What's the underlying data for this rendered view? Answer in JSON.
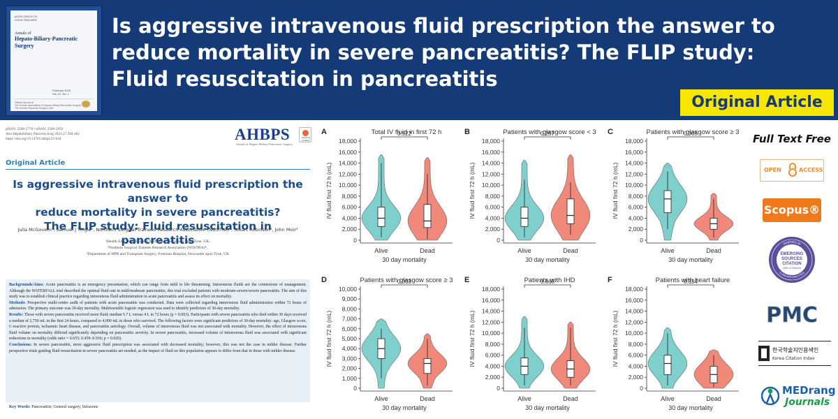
{
  "banner": {
    "headline_lines": [
      "Is aggressive intravenous fluid prescription the answer to",
      "reduce mortality in severe pancreatitis? The FLIP study:",
      "Fluid resuscitation in pancreatitis"
    ],
    "badge": "Original Article",
    "colors": {
      "background": "#143a78",
      "badge": "#f7e600"
    },
    "cover": {
      "issn_lines": [
        "pISSN 2508-5778",
        "eISSN 2508-5859"
      ],
      "title_small": "Annals of",
      "title_large": "Hepato-Biliary-Pancreatic Surgery",
      "volume_lines": [
        "February 2023",
        "Vol. 27, No. 1"
      ],
      "footer_lines": [
        "Official Journal of",
        "The Korean Association of Hepato-Biliary-Pancreatic Surgery",
        "The Korean Pancreas Surgery Club"
      ]
    }
  },
  "article": {
    "meta_lines": [
      "pISSN: 2508-5778 • eISSN: 2508-5859",
      "Ann Hepatobiliary Pancreat Surg 2023;27:394-402",
      "https://doi.org/10.14701/ahbps.23-044"
    ],
    "journal_logo": "AHBPS",
    "journal_logo_sub": "Annals of Hepato-Biliary-Pancreatic Surgery",
    "check_updates": "Check for updates",
    "section_label": "Original Article",
    "title_lines": [
      "Is aggressive intravenous fluid prescription the answer to",
      "reduce mortality in severe pancreatitis?",
      "The FLIP study: Fluid resuscitation in pancreatitis"
    ],
    "authors": "Julia McGovern¹, Samuel J Tingle¹, Northern Surgical Trainees Research Association (NOSTRA)², Stuart Robinson³, John Moir³",
    "affiliations": [
      "¹Health Education England North East, Newcastle upon Tyne, UK,",
      "²Northern Surgical Trainees Research Association (NOSTRA)*,",
      "³Department of HPB and Transplant Surgery, Freeman Hospital, Newcastle upon Tyne, UK"
    ],
    "abstract": {
      "background_label": "Backgrounds/Aims:",
      "background": "Acute pancreatitis is an emergency presentation, which can range from mild to life threatening. Intravenous fluids are the cornerstone of management. Although the WATERFALL trial described the optimal fluid rate in mild/moderate pancreatitis, this trial excluded patients with moderate-severe/severe pancreatitis. The aim of this study was to establish clinical practice regarding intravenous fluid administration in acute pancreatitis and assess its effect on mortality.",
      "methods_label": "Methods:",
      "methods": "Prospective multi-centre audit of patients with acute pancreatitis was conducted. Data were collected regarding intravenous fluid administration within 72 hours of admission. The primary outcome was 30-day mortality. Multivariable logistic regression was used to identify predictors of 30-day mortality.",
      "results_label": "Results:",
      "results": "Those with severe pancreatitis received more fluid; median 5.7 L versus 4 L in 72 hours (p = 0.003). Participants with severe pancreatitis who died within 30 days received a median of 2,750 mL in the first 24 hours, compared to 4,000 mL in those who survived. The following factors were significant predictors of 30-day mortality: age, Glasgow score, C-reactive protein, ischaemic heart disease, and pancreatitis aetiology. Overall, volume of intravenous fluid was not associated with mortality. However, the effect of intravenous fluid volume on mortality differed significantly depending on pancreatitis severity. In severe pancreatitis, increased volume of intravenous fluid was associated with significant reductions in mortality (odds ratio = 0.655; 0.459–0.936; p = 0.020).",
      "conclusions_label": "Conclusions:",
      "conclusions": "In severe pancreatitis, more aggressive fluid prescription was associated with decreased mortality; however, this was not the case in milder disease. Further prospective trials guiding fluid resuscitation in severe pancreatitis are needed, as the impact of fluid on this population appears to differ from that in those with milder disease."
    },
    "keywords_label": "Key Words:",
    "keywords": "Pancreatitis; General surgery; Infusions"
  },
  "figure": {
    "colors": {
      "alive": "#7fd0cd",
      "dead": "#f0897a"
    },
    "panels": [
      {
        "letter": "A",
        "title": "Total IV fluid in first 72 h",
        "p": "0.922",
        "ymax": 18000,
        "ticks": [
          "0",
          "2,000",
          "4,000",
          "6,000",
          "8,000",
          "10,000",
          "12,000",
          "14,000",
          "16,000",
          "18,000"
        ],
        "ylabel": "IV fluid first 72 h (mL)",
        "xlabel": "30 day mortality",
        "groups": [
          "Alive",
          "Dead"
        ],
        "alive": {
          "q1": 2500,
          "med": 4000,
          "q3": 6000,
          "lo": 500,
          "hi": 14000,
          "top": 15500
        },
        "dead": {
          "q1": 2300,
          "med": 3500,
          "q3": 6500,
          "lo": 200,
          "hi": 12000,
          "top": 15000
        }
      },
      {
        "letter": "B",
        "title": "Patients with glasgow score < 3",
        "p": "0.257",
        "ymax": 18000,
        "ticks": [
          "0",
          "2,000",
          "4,000",
          "6,000",
          "8,000",
          "10,000",
          "12,000",
          "14,000",
          "16,000",
          "18,000"
        ],
        "ylabel": "IV fluid first 72 h (mL)",
        "xlabel": "30 day mortality",
        "groups": [
          "Alive",
          "Dead"
        ],
        "alive": {
          "q1": 2500,
          "med": 4000,
          "q3": 6000,
          "lo": 500,
          "hi": 11000,
          "top": 14500
        },
        "dead": {
          "q1": 3000,
          "med": 4500,
          "q3": 7500,
          "lo": 1000,
          "hi": 10500,
          "top": 15500
        }
      },
      {
        "letter": "C",
        "title": "Patients with glasgow score ≥ 3",
        "p": "0.005",
        "ymax": 18000,
        "ticks": [
          "0",
          "2,000",
          "4,000",
          "6,000",
          "8,000",
          "10,000",
          "12,000",
          "14,000",
          "16,000",
          "18,000"
        ],
        "ylabel": "IV fluid first 72 h (mL)",
        "xlabel": "30 day mortality",
        "groups": [
          "Alive",
          "Dead"
        ],
        "alive": {
          "q1": 5000,
          "med": 7500,
          "q3": 9000,
          "lo": 2000,
          "hi": 12500,
          "top": 14000
        },
        "dead": {
          "q1": 2000,
          "med": 3000,
          "q3": 4000,
          "lo": 500,
          "hi": 7500,
          "top": 8500
        }
      },
      {
        "letter": "D",
        "title": "Patients with glasgow score ≥ 3",
        "p": "0.033",
        "ymax": 10000,
        "ticks": [
          "0",
          "1,000",
          "2,000",
          "3,000",
          "4,000",
          "5,000",
          "6,000",
          "7,000",
          "8,000",
          "9,000",
          "10,000"
        ],
        "ylabel": "IV fluid first 72 h (mL)",
        "xlabel": "30 day mortality",
        "groups": [
          "Alive",
          "Dead"
        ],
        "alive": {
          "q1": 3000,
          "med": 4000,
          "q3": 5000,
          "lo": 1000,
          "hi": 6000,
          "top": 7000
        },
        "dead": {
          "q1": 1500,
          "med": 2500,
          "q3": 3000,
          "lo": 300,
          "hi": 5000,
          "top": 5500
        }
      },
      {
        "letter": "E",
        "title": "Patients with IHD",
        "p": "0.668",
        "ymax": 18000,
        "ticks": [
          "0",
          "2,000",
          "4,000",
          "6,000",
          "8,000",
          "10,000",
          "12,000",
          "14,000",
          "16,000",
          "18,000"
        ],
        "ylabel": "IV fluid first 72 h (mL)",
        "xlabel": "30 day mortality",
        "groups": [
          "Alive",
          "Dead"
        ],
        "alive": {
          "q1": 2500,
          "med": 4000,
          "q3": 5500,
          "lo": 500,
          "hi": 11000,
          "top": 13000
        },
        "dead": {
          "q1": 2000,
          "med": 3500,
          "q3": 5000,
          "lo": 500,
          "hi": 11000,
          "top": 12000
        }
      },
      {
        "letter": "F",
        "title": "Patients with heart failure",
        "p": "0.334",
        "ymax": 18000,
        "ticks": [
          "0",
          "2,000",
          "4,000",
          "6,000",
          "8,000",
          "10,000",
          "12,000",
          "14,000",
          "16,000",
          "18,000"
        ],
        "ylabel": "IV fluid first 72 h (mL)",
        "xlabel": "30 day mortality",
        "groups": [
          "Alive",
          "Dead"
        ],
        "alive": {
          "q1": 2500,
          "med": 4500,
          "q3": 6000,
          "lo": 500,
          "hi": 10000,
          "top": 11000
        },
        "dead": {
          "q1": 1000,
          "med": 2500,
          "q3": 4000,
          "lo": 200,
          "hi": 6000,
          "top": 7000
        }
      }
    ]
  },
  "sidebar": {
    "full_text_free": "Full Text Free",
    "open_access": [
      "OPEN",
      "ACCESS"
    ],
    "scopus": "Scopus®",
    "esci_lines": [
      "EMERGING",
      "SOURCES",
      "CITATION"
    ],
    "esci_sub": "(Web of Science)",
    "esci_ring_top": "INDEXED IN",
    "esci_ring_bottom": "CLARIVATE ANALYTICS",
    "pmc": "PMC",
    "kci_korean": "한국학술지인용색인",
    "kci_english": "Korea Citation Index",
    "medrang_top": "MEDrang",
    "medrang_bottom": "Journals"
  }
}
